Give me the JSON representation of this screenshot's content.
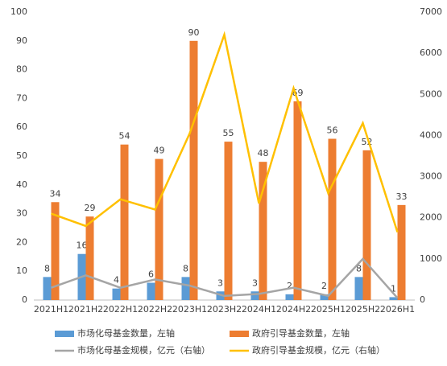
{
  "chart_data": {
    "type": "bar_line",
    "categories": [
      "2021H1",
      "2021H2",
      "2022H1",
      "2022H2",
      "2023H1",
      "2023H2",
      "2024H1",
      "2024H2",
      "2025H1",
      "2025H2",
      "2026H1"
    ],
    "series": [
      {
        "name": "市场化母基金数量，左轴",
        "kind": "bar",
        "color": "#5b9bd5",
        "values": [
          8,
          16,
          4,
          6,
          8,
          3,
          3,
          2,
          2,
          8,
          1
        ]
      },
      {
        "name": "政府引导基金数量，左轴",
        "kind": "bar",
        "color": "#ed7d31",
        "values": [
          34,
          29,
          54,
          49,
          90,
          55,
          48,
          69,
          56,
          52,
          33
        ]
      },
      {
        "name": "市场化母基金规模，亿元（右轴）",
        "kind": "line",
        "axis": "y2",
        "color": "#a5a5a5",
        "values": [
          300,
          600,
          300,
          500,
          350,
          100,
          150,
          300,
          100,
          1000,
          50
        ]
      },
      {
        "name": "政府引导基金规模，亿元（右轴）",
        "kind": "line",
        "axis": "y2",
        "color": "#ffc000",
        "values": [
          2100,
          1800,
          2450,
          2200,
          4050,
          6450,
          2350,
          5150,
          2600,
          4300,
          1650
        ]
      }
    ],
    "ylim": [
      0,
      100
    ],
    "yticks": [
      0,
      10,
      20,
      30,
      40,
      50,
      60,
      70,
      80,
      90,
      100
    ],
    "y2lim": [
      0,
      7000
    ],
    "y2ticks": [
      0,
      1000,
      2000,
      3000,
      4000,
      5000,
      6000,
      7000
    ],
    "grid": false
  }
}
